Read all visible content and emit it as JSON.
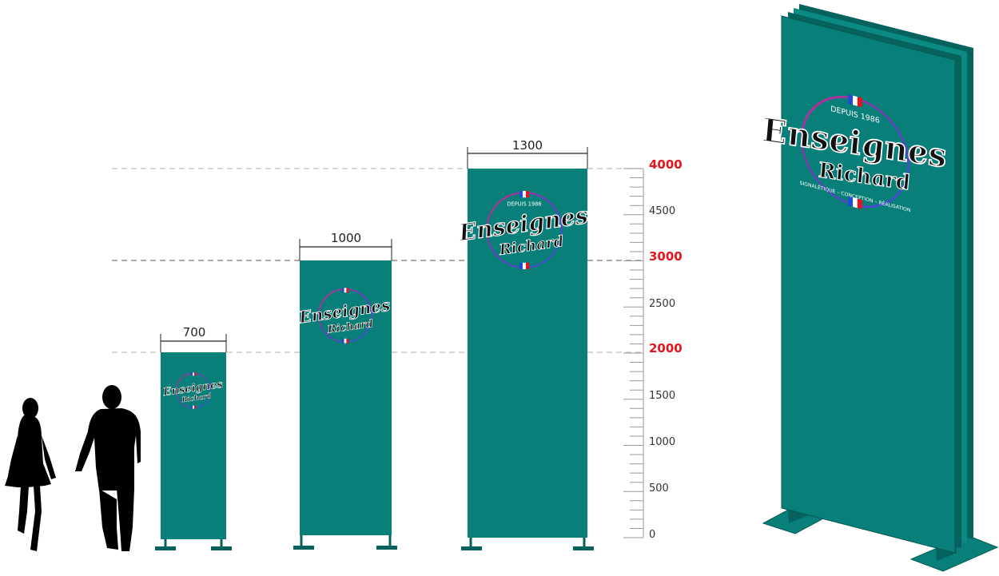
{
  "colors": {
    "panel": "#087f79",
    "panel_dark": "#06625d",
    "accent_red": "#e8141c",
    "guide": "#b5b5b5"
  },
  "brand": {
    "line1": "Enseignes",
    "line2": "Richard",
    "since": "DEPUIS 1986",
    "tagline": "SIGNALÉTIQUE – CONCEPTION – RÉALISATION"
  },
  "widths": {
    "w700": "700",
    "w1000": "1000",
    "w1300": "1300"
  },
  "scale": {
    "major": [
      "4000",
      "3000",
      "2000"
    ],
    "minor": [
      "4500",
      "2500",
      "1500",
      "1000",
      "500",
      "0"
    ]
  },
  "figures": [
    "woman-silhouette",
    "man-silhouette"
  ]
}
